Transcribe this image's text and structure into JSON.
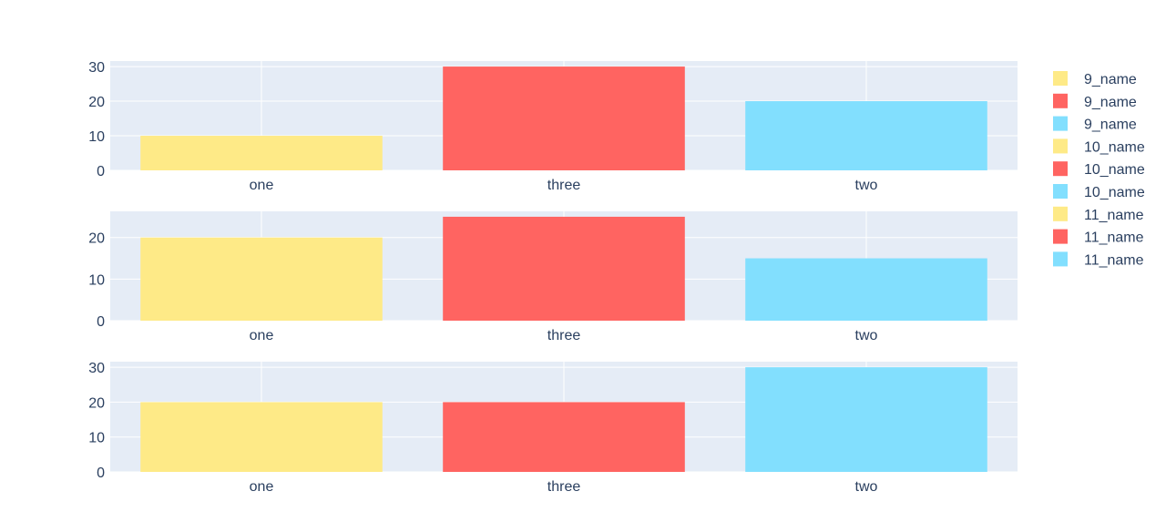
{
  "chart_data": [
    {
      "type": "bar",
      "categories": [
        "one",
        "three",
        "two"
      ],
      "series": [
        {
          "name": "9_name",
          "values": [
            10,
            null,
            null
          ]
        },
        {
          "name": "9_name",
          "values": [
            null,
            30,
            null
          ]
        },
        {
          "name": "9_name",
          "values": [
            null,
            null,
            20
          ]
        }
      ],
      "yticks": [
        0,
        10,
        20,
        30
      ],
      "ylim": [
        0,
        31.6
      ]
    },
    {
      "type": "bar",
      "categories": [
        "one",
        "three",
        "two"
      ],
      "series": [
        {
          "name": "10_name",
          "values": [
            20,
            null,
            null
          ]
        },
        {
          "name": "10_name",
          "values": [
            null,
            25,
            null
          ]
        },
        {
          "name": "10_name",
          "values": [
            null,
            null,
            15
          ]
        }
      ],
      "yticks": [
        0,
        10,
        20
      ],
      "ylim": [
        0,
        26.3
      ]
    },
    {
      "type": "bar",
      "categories": [
        "one",
        "three",
        "two"
      ],
      "series": [
        {
          "name": "11_name",
          "values": [
            20,
            null,
            null
          ]
        },
        {
          "name": "11_name",
          "values": [
            null,
            20,
            null
          ]
        },
        {
          "name": "11_name",
          "values": [
            null,
            null,
            30
          ]
        }
      ],
      "yticks": [
        0,
        10,
        20,
        30
      ],
      "ylim": [
        0,
        31.6
      ]
    }
  ],
  "colors": [
    "#FEEA87",
    "#FF6461",
    "#82DFFE"
  ],
  "plot_background": "#E5ECF6",
  "legend": {
    "placement": "right",
    "items": [
      {
        "label": "9_name",
        "color": "#FEEA87"
      },
      {
        "label": "9_name",
        "color": "#FF6461"
      },
      {
        "label": "9_name",
        "color": "#82DFFE"
      },
      {
        "label": "10_name",
        "color": "#FEEA87"
      },
      {
        "label": "10_name",
        "color": "#FF6461"
      },
      {
        "label": "10_name",
        "color": "#82DFFE"
      },
      {
        "label": "11_name",
        "color": "#FEEA87"
      },
      {
        "label": "11_name",
        "color": "#FF6461"
      },
      {
        "label": "11_name",
        "color": "#82DFFE"
      }
    ]
  }
}
